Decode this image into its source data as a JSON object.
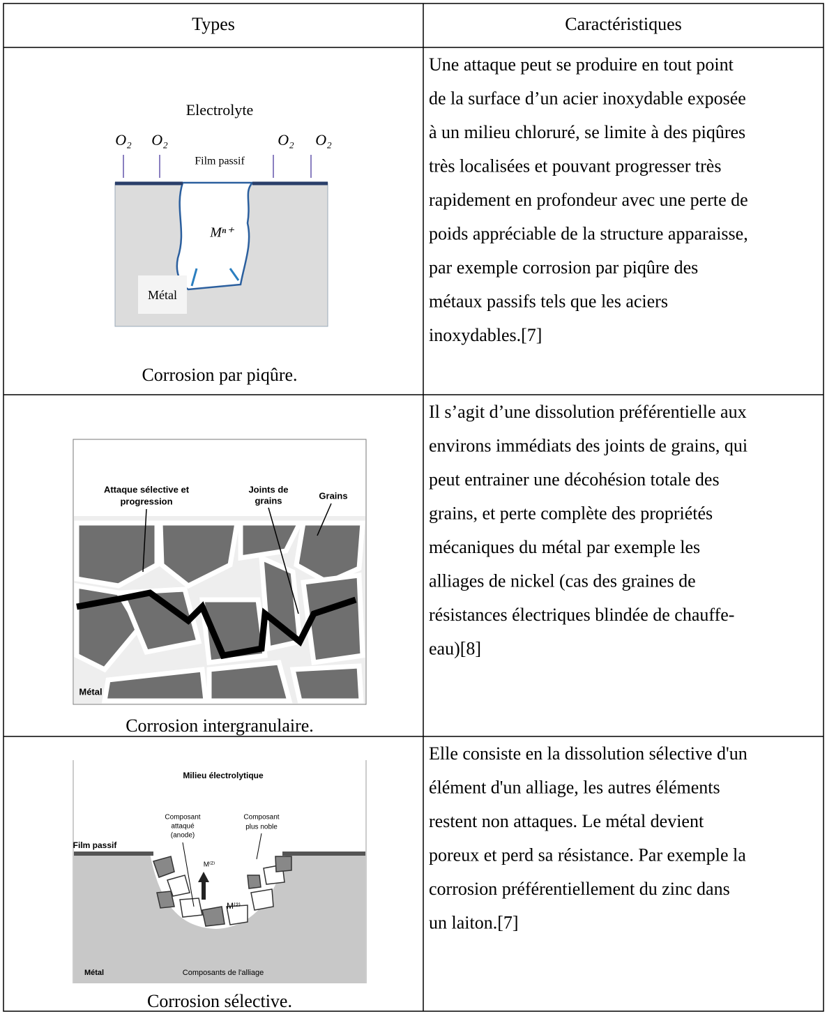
{
  "table": {
    "header": [
      "Types",
      "Caractéristiques"
    ],
    "rows": [
      {
        "figure": {
          "labels": [
            "Electrolyte",
            "O₂",
            "O₂",
            "O₂",
            "O₂",
            "Film passif",
            "Mⁿ⁺",
            "Métal"
          ]
        },
        "caption": "Corrosion par piqûre.",
        "text": [
          "Une attaque peut se produire en tout point",
          "de la surface d’un acier inoxydable exposée",
          "à un milieu chloruré, se limite à des piqûres",
          "très localisées et pouvant progresser très",
          "rapidement en profondeur avec une perte de",
          "poids appréciable de la structure apparaisse,",
          "par exemple corrosion par piqûre des",
          "métaux passifs tels que les aciers",
          "inoxydables.[7]"
        ]
      },
      {
        "figure": {
          "labels": [
            "Attaque sélective et",
            "progression",
            "Joints de",
            "grains",
            "Grains",
            "Métal"
          ]
        },
        "caption": "Corrosion intergranulaire.",
        "text": [
          "Il s’agit d’une dissolution préférentielle aux",
          "environs immédiats des joints de grains, qui",
          "peut entrainer une décohésion totale des",
          "grains, et perte complète des propriétés",
          "mécaniques du métal par exemple les",
          "alliages de nickel (cas des graines de",
          "résistances électriques blindée de chauffe-",
          "eau)[8]"
        ]
      },
      {
        "figure": {
          "labels": [
            "Milieu électrolytique",
            "Composant",
            "attaqué",
            "(anode)",
            "Composant",
            "plus noble",
            "Film passif",
            "M⁽²⁾",
            "M⁽²⁾",
            "Métal",
            "Composants de l'alliage"
          ]
        },
        "caption": "Corrosion sélective.",
        "text": [
          "Elle consiste en la dissolution sélective d'un",
          "élément d'un alliage, les autres éléments",
          "restent non attaques. Le métal devient",
          "poreux et perd sa résistance. Par exemple la",
          "corrosion préférentiellement du zinc dans",
          "un laiton.[7]"
        ]
      }
    ]
  }
}
